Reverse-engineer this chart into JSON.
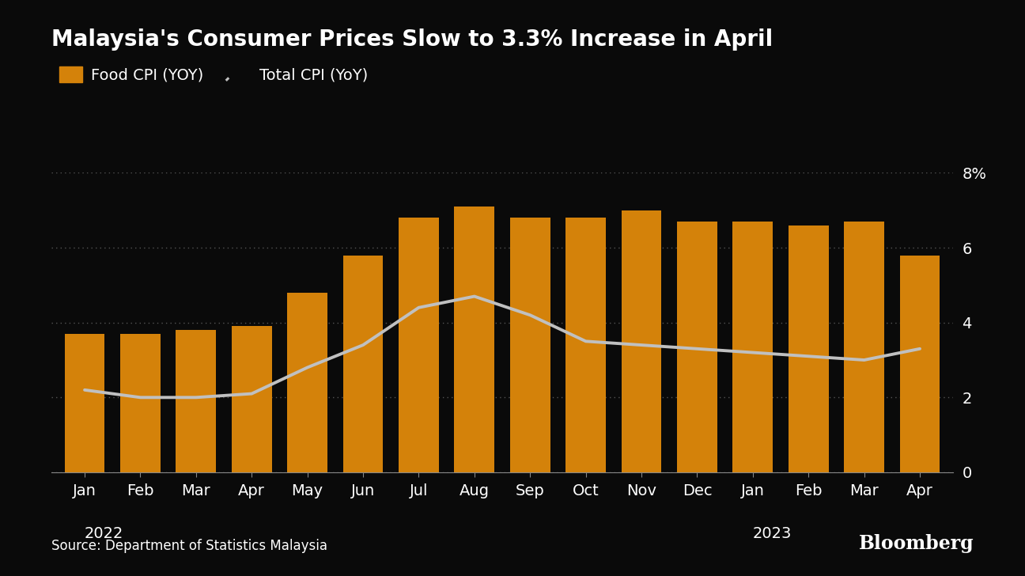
{
  "title": "Malaysia's Consumer Prices Slow to 3.3% Increase in April",
  "source": "Source: Department of Statistics Malaysia",
  "bloomberg": "Bloomberg",
  "background_color": "#0a0a0a",
  "text_color": "#ffffff",
  "bar_color": "#d4820a",
  "line_color": "#c0c0c0",
  "grid_color": "#555555",
  "categories": [
    "Jan",
    "Feb",
    "Mar",
    "Apr",
    "May",
    "Jun",
    "Jul",
    "Aug",
    "Sep",
    "Oct",
    "Nov",
    "Dec",
    "Jan",
    "Feb",
    "Mar",
    "Apr"
  ],
  "year_labels": [
    {
      "label": "2022",
      "index": 0
    },
    {
      "label": "2023",
      "index": 12
    }
  ],
  "food_cpi": [
    3.7,
    3.7,
    3.8,
    3.9,
    4.8,
    5.8,
    6.8,
    7.1,
    6.8,
    6.8,
    7.0,
    6.7,
    6.7,
    6.6,
    6.7,
    5.8
  ],
  "total_cpi": [
    2.2,
    2.0,
    2.0,
    2.1,
    2.8,
    3.4,
    4.4,
    4.7,
    4.2,
    3.5,
    3.4,
    3.3,
    3.2,
    3.1,
    3.0,
    3.3
  ],
  "ylim": [
    0,
    8
  ],
  "yticks": [
    0,
    2,
    4,
    6,
    8
  ],
  "ytick_labels": [
    "0",
    "2",
    "4",
    "6",
    "8%"
  ]
}
